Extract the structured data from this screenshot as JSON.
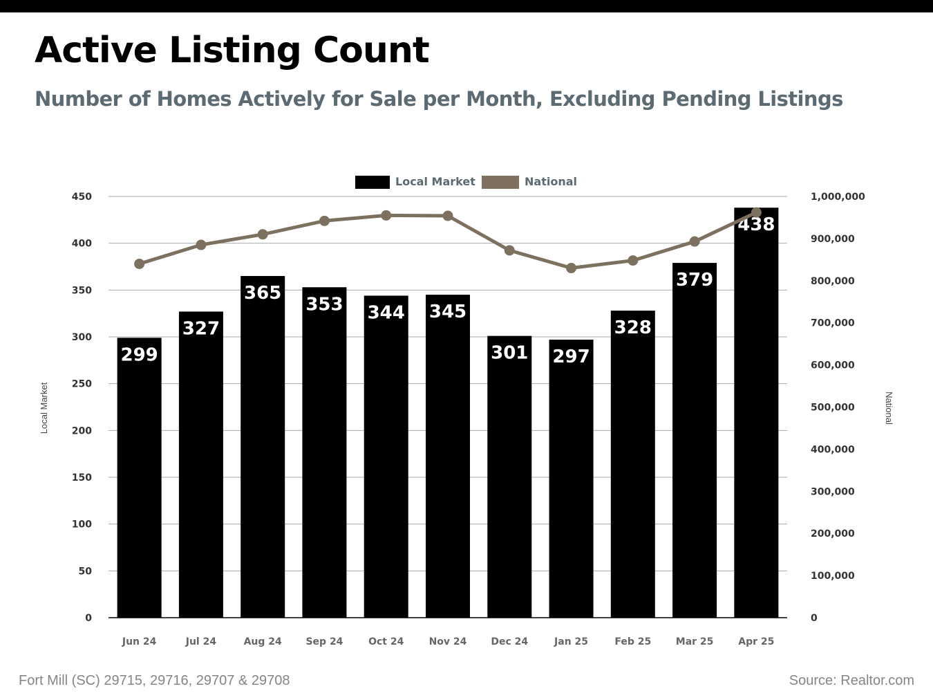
{
  "header": {
    "title": "Active Listing Count",
    "subtitle": "Number of Homes Actively for Sale per Month, Excluding Pending Listings"
  },
  "footer": {
    "location": "Fort Mill (SC) 29715, 29716, 29707 & 29708",
    "source": "Source: Realtor.com"
  },
  "chart_data": {
    "type": "bar",
    "title": "",
    "categories": [
      "Jun 24",
      "Jul 24",
      "Aug 24",
      "Sep 24",
      "Oct 24",
      "Nov 24",
      "Dec 24",
      "Jan 25",
      "Feb 25",
      "Mar 25",
      "Apr 25"
    ],
    "series": [
      {
        "name": "Local Market",
        "type": "bar",
        "axis": "left",
        "color": "#000000",
        "values": [
          299,
          327,
          365,
          353,
          344,
          345,
          301,
          297,
          328,
          379,
          438
        ]
      },
      {
        "name": "National",
        "type": "line",
        "axis": "right",
        "color": "#7e705f",
        "values": [
          840000,
          885000,
          910000,
          942000,
          955000,
          954000,
          872000,
          830000,
          848000,
          893000,
          962000
        ]
      }
    ],
    "ylabel": "Local Market",
    "y2label": "National",
    "ylim": [
      0,
      450
    ],
    "yticks": [
      0,
      50,
      100,
      150,
      200,
      250,
      300,
      350,
      400,
      450
    ],
    "y2lim": [
      0,
      1000000
    ],
    "y2ticks": [
      "0",
      "100,000",
      "200,000",
      "300,000",
      "400,000",
      "500,000",
      "600,000",
      "700,000",
      "800,000",
      "900,000",
      "1,000,000"
    ],
    "grid": true,
    "legend": "top-center",
    "data_labels": true
  }
}
